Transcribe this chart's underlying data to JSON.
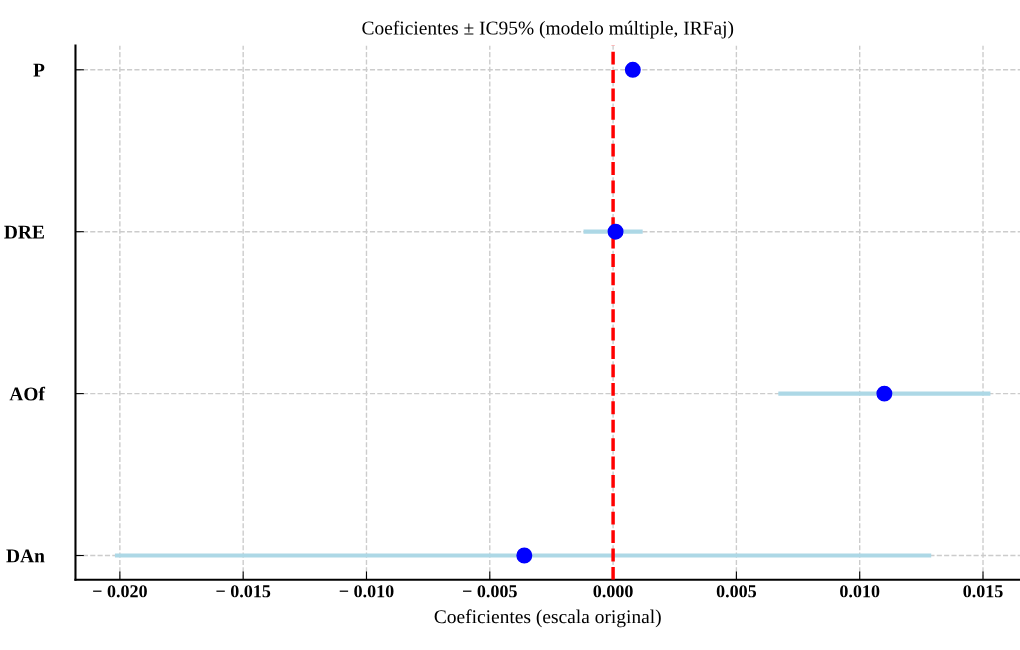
{
  "chart_data": {
    "type": "scatter",
    "orientation": "horizontal",
    "title": "Coeficientes ± IC95% (modelo múltiple, IRFaj)",
    "xlabel": "Coeficientes (escala original)",
    "categories": [
      "P",
      "DRE",
      "AOf",
      "DAn"
    ],
    "series": [
      {
        "color": "#0000ff",
        "values": [
          0.0008,
          0.0001,
          0.011,
          -0.0036
        ],
        "errors": [
          null,
          [
            -0.0012,
            0.0012
          ],
          [
            0.0067,
            0.0153
          ],
          [
            -0.0202,
            0.0129
          ]
        ]
      }
    ],
    "marker": "circle",
    "xlim": [
      -0.0218,
      0.0165
    ],
    "xticks": [
      {
        "value": -0.02,
        "label": "− 0.020"
      },
      {
        "value": -0.015,
        "label": "− 0.015"
      },
      {
        "value": -0.01,
        "label": "− 0.010"
      },
      {
        "value": -0.005,
        "label": "− 0.005"
      },
      {
        "value": 0,
        "label": "0.000"
      },
      {
        "value": 0.005,
        "label": "0.005"
      },
      {
        "value": 0.01,
        "label": "0.010"
      },
      {
        "value": 0.015,
        "label": "0.015"
      }
    ],
    "ref_lines": [
      {
        "axis": "x",
        "value": 0,
        "color": "#ff0000",
        "line_style": "dashed"
      }
    ],
    "grid": true
  }
}
